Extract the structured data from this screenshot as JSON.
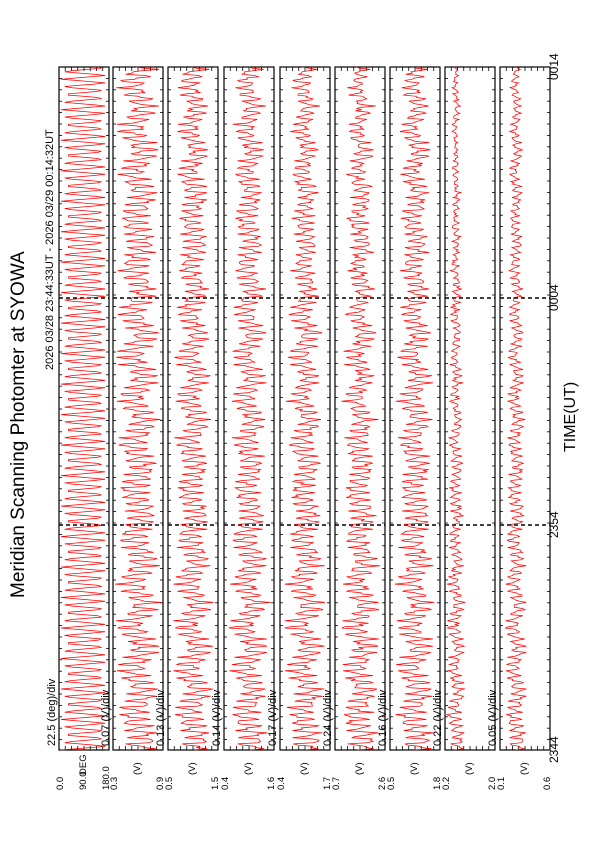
{
  "chart_data": {
    "type": "line",
    "title": "Meridian Scanning Photomter at SYOWA",
    "subtitle": "2026 03/28 23:44:33UT - 2026 03/29 00:14:32UT",
    "xlabel": "TIME(UT)",
    "xticks": [
      "2344",
      "2354",
      "0004",
      "0014"
    ],
    "line_color": "#ff0000",
    "grid": "dashed vertical lines at 2354 and 0004",
    "panels": [
      {
        "scale": "22.5 (deg)/div",
        "yticks": [
          "180.0",
          "90.0",
          "0.0"
        ],
        "unit": "DEG",
        "ylim": [
          0,
          180
        ],
        "mean": 90,
        "amp": 90,
        "noise": 0.0,
        "decay": 0.0,
        "mode": "sawtooth"
      },
      {
        "scale": "0.07 (V)/div",
        "yticks": [
          "0.9",
          "0.3"
        ],
        "unit": "(V)",
        "ylim": [
          0.3,
          0.9
        ],
        "mean": 0.6,
        "amp": 0.28,
        "noise": 0.1,
        "decay": 0.1,
        "mode": "wave"
      },
      {
        "scale": "0.13 (V)/div",
        "yticks": [
          "1.5",
          "0.5"
        ],
        "unit": "(V)",
        "ylim": [
          0.5,
          1.5
        ],
        "mean": 1.0,
        "amp": 0.42,
        "noise": 0.12,
        "decay": 0.25,
        "mode": "wave"
      },
      {
        "scale": "0.14 (V)/div",
        "yticks": [
          "1.6",
          "0.4"
        ],
        "unit": "(V)",
        "ylim": [
          0.4,
          1.6
        ],
        "mean": 1.0,
        "amp": 0.5,
        "noise": 0.12,
        "decay": 0.3,
        "mode": "wave"
      },
      {
        "scale": "0.17 (V)/div",
        "yticks": [
          "1.7",
          "0.4"
        ],
        "unit": "(V)",
        "ylim": [
          0.4,
          1.7
        ],
        "mean": 1.05,
        "amp": 0.55,
        "noise": 0.15,
        "decay": 0.4,
        "mode": "wave"
      },
      {
        "scale": "0.24 (V)/div",
        "yticks": [
          "2.6",
          "0.7"
        ],
        "unit": "(V)",
        "ylim": [
          0.7,
          2.6
        ],
        "mean": 1.65,
        "amp": 0.8,
        "noise": 0.2,
        "decay": 0.45,
        "mode": "wave"
      },
      {
        "scale": "0.16 (V)/div",
        "yticks": [
          "1.8",
          "0.5"
        ],
        "unit": "(V)",
        "ylim": [
          0.5,
          1.8
        ],
        "mean": 1.15,
        "amp": 0.55,
        "noise": 0.12,
        "decay": 0.35,
        "mode": "wave"
      },
      {
        "scale": "0.22 (V)/div",
        "yticks": [
          "2.0",
          "0.2"
        ],
        "unit": "(V)",
        "ylim": [
          0.2,
          2.0
        ],
        "mean": 0.55,
        "amp": 0.35,
        "noise": 0.1,
        "decay": 0.7,
        "mode": "wave"
      },
      {
        "scale": "0.05 (V)/div",
        "yticks": [
          "0.6",
          "0.1"
        ],
        "unit": "(V)",
        "ylim": [
          0.1,
          0.6
        ],
        "mean": 0.25,
        "amp": 0.12,
        "noise": 0.06,
        "decay": 0.55,
        "mode": "wave"
      }
    ]
  }
}
